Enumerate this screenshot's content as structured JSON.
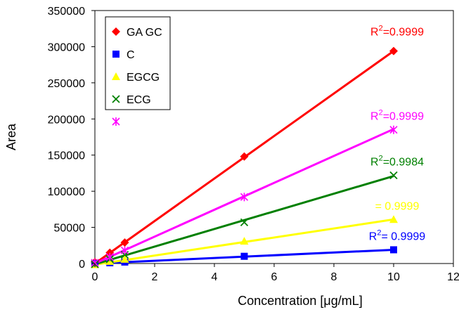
{
  "chart_data": {
    "type": "scatter",
    "title": "",
    "xlabel": "Concentration [μg/mL]",
    "ylabel": "Area",
    "xlim": [
      0,
      12
    ],
    "ylim": [
      0,
      350000
    ],
    "xticks": [
      0,
      2,
      4,
      6,
      8,
      10,
      12
    ],
    "yticks": [
      0,
      50000,
      100000,
      150000,
      200000,
      250000,
      300000,
      350000
    ],
    "grid": false,
    "legend": {
      "placement": "top-left"
    },
    "series": [
      {
        "name": "GA GC",
        "marker": "diamond",
        "color": "#ff0000",
        "x": [
          0,
          0.5,
          1,
          5,
          10
        ],
        "y": [
          2000,
          15000,
          29000,
          148000,
          294000
        ],
        "fit": [
          [
            0,
            0
          ],
          [
            10,
            294000
          ]
        ],
        "r2_label": "R",
        "r2_sup": "2",
        "r2_value": "=0.9999"
      },
      {
        "name": "C",
        "marker": "square",
        "color": "#0000ff",
        "x": [
          0,
          0.5,
          1,
          5,
          10
        ],
        "y": [
          0,
          1000,
          2000,
          10000,
          19000
        ],
        "fit": [
          [
            0,
            0
          ],
          [
            10,
            19000
          ]
        ],
        "r2_label": "R",
        "r2_sup": "2",
        "r2_value": "= 0.9999"
      },
      {
        "name": "EGCG",
        "marker": "triangle",
        "color": "#ffff00",
        "x": [
          0,
          0.5,
          1,
          5,
          10
        ],
        "y": [
          -1500,
          3000,
          6000,
          31000,
          61000
        ],
        "fit": [
          [
            0,
            -1500
          ],
          [
            10,
            61000
          ]
        ],
        "r2_label": "",
        "r2_sup": "",
        "r2_value": "= 0.9999"
      },
      {
        "name": "ECG",
        "marker": "x",
        "color": "#008000",
        "x": [
          0,
          0.5,
          1,
          5,
          10
        ],
        "y": [
          -1000,
          6000,
          12000,
          57000,
          122000
        ],
        "fit": [
          [
            0,
            -1000
          ],
          [
            10,
            121000
          ]
        ],
        "r2_label": "R",
        "r2_sup": "2",
        "r2_value": "=0.9984"
      },
      {
        "name": "",
        "marker": "star",
        "color": "#ff00ff",
        "x": [
          0,
          0.5,
          1,
          5,
          10
        ],
        "y": [
          1000,
          9000,
          18000,
          92000,
          185000
        ],
        "fit": [
          [
            0,
            0
          ],
          [
            10,
            186000
          ]
        ],
        "r2_label": "R",
        "r2_sup": "2",
        "r2_value": "=0.9999"
      }
    ]
  }
}
